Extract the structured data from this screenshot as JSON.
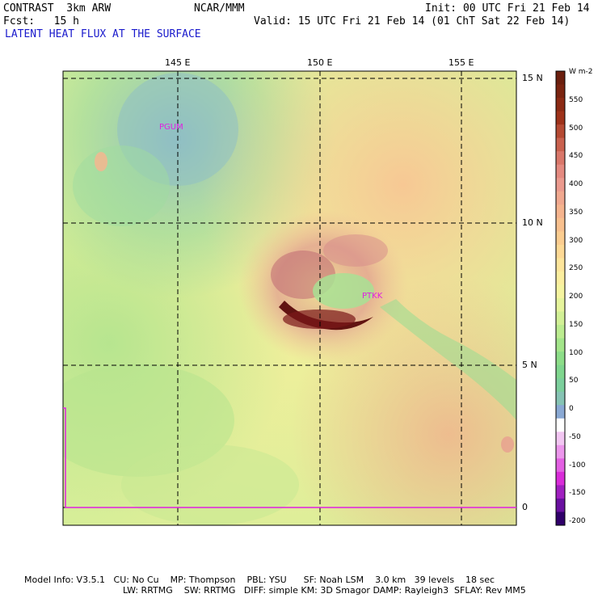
{
  "header": {
    "left_line1": "CONTRAST  3km ARW",
    "center_line1": "NCAR/MMM",
    "right_line1": "Init: 00 UTC Fri 21 Feb 14",
    "left_line2": "Fcst:   15 h",
    "right_line2": "Valid: 15 UTC Fri 21 Feb 14 (01 ChT Sat 22 Feb 14)",
    "field_title": "LATENT HEAT FLUX AT THE SURFACE"
  },
  "map": {
    "lon_labels": [
      "145 E",
      "150 E",
      "155 E"
    ],
    "lat_labels": [
      "15 N",
      "10 N",
      "5 N",
      "0"
    ],
    "stations": [
      {
        "name": "PGUM"
      },
      {
        "name": "PTKK"
      }
    ],
    "background_color": "#b0e0a0",
    "cyclone_core_color": "#5a0a0a"
  },
  "colorbar": {
    "units": "W m-2",
    "labels": [
      "550",
      "500",
      "450",
      "400",
      "350",
      "300",
      "250",
      "200",
      "150",
      "100",
      "50",
      "0",
      "-50",
      "-100",
      "-150",
      "-200"
    ],
    "colors": [
      "#6b1f0e",
      "#7a2410",
      "#8b2a14",
      "#9e321a",
      "#b54a33",
      "#c9614e",
      "#d9776a",
      "#e48a80",
      "#eb9a8e",
      "#f0a88f",
      "#f5b48e",
      "#f8c08e",
      "#fbcd90",
      "#fdd995",
      "#fde59b",
      "#fbee9f",
      "#f5f4a0",
      "#e6f49c",
      "#d2f096",
      "#bcec90",
      "#a3e58a",
      "#8cdd88",
      "#7fd68e",
      "#7ccf9c",
      "#86c3b4",
      "#8aa9d4",
      "#ffffff",
      "#f2c6f2",
      "#ec96ec",
      "#e360e3",
      "#d92cd9",
      "#a020c0",
      "#6a10a0",
      "#30006a"
    ]
  },
  "footer": {
    "line1": "Model Info: V3.5.1   CU: No Cu    MP: Thompson    PBL: YSU      SF: Noah LSM    3.0 km   39 levels    18 sec",
    "line2": "LW: RRTMG    SW: RRTMG   DIFF: simple KM: 3D Smagor DAMP: Rayleigh3  SFLAY: Rev MM5"
  }
}
